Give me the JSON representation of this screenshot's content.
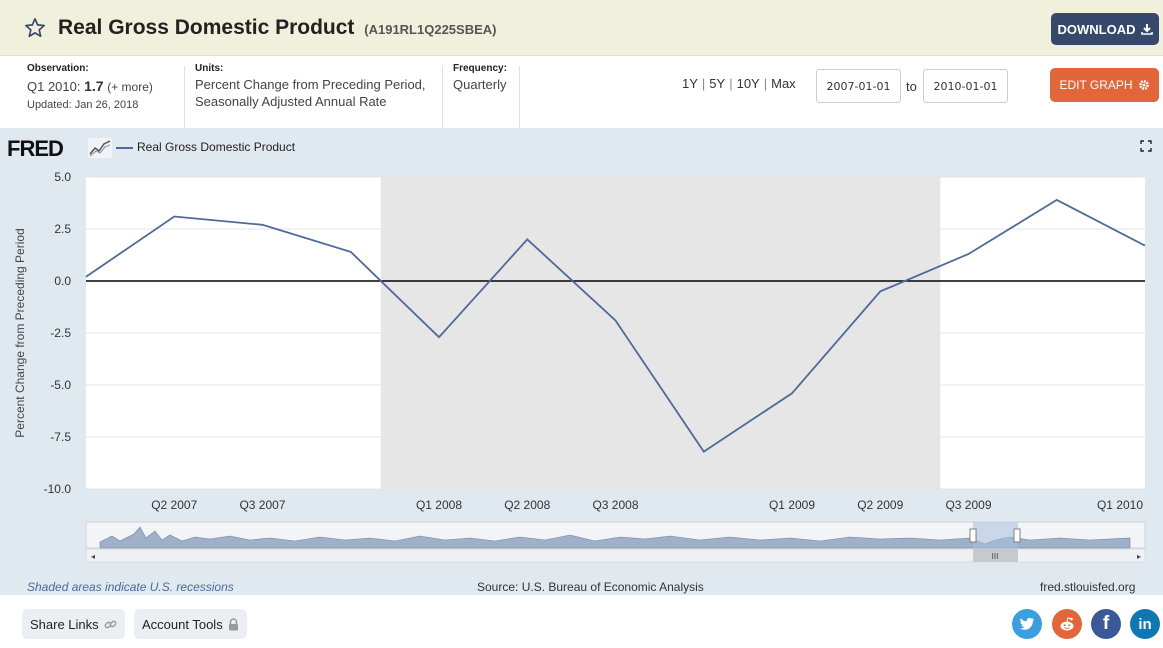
{
  "header": {
    "title": "Real Gross Domestic Product",
    "series_id": "(A191RL1Q225SBEA)",
    "download_label": "DOWNLOAD"
  },
  "meta": {
    "observation_label": "Observation:",
    "observation_period": "Q1 2010:",
    "observation_value": "1.7",
    "observation_more": "(+ more)",
    "updated": "Updated: Jan 26, 2018",
    "units_label": "Units:",
    "units_line1": "Percent Change from Preceding Period,",
    "units_line2": "Seasonally Adjusted Annual Rate",
    "frequency_label": "Frequency:",
    "frequency_value": "Quarterly"
  },
  "range_buttons": [
    "1Y",
    "5Y",
    "10Y",
    "Max"
  ],
  "date_range": {
    "start": "2007-01-01",
    "to_label": "to",
    "end": "2010-01-01"
  },
  "edit_label": "EDIT GRAPH",
  "graph": {
    "logo": "FRED",
    "legend_label": "Real Gross Domestic Product",
    "recession_note": "Shaded areas indicate U.S. recessions",
    "source": "Source: U.S. Bureau of Economic Analysis",
    "site": "fred.stlouisfed.org"
  },
  "footer": {
    "share_links": "Share Links",
    "account_tools": "Account Tools"
  },
  "colors": {
    "line": "#4d6a99",
    "recession_shade": "#e6e6e6",
    "header_bg": "#f0f0dc",
    "download_bg": "#36486b",
    "edit_bg": "#e2663a",
    "graph_bg": "#e1e9f0"
  },
  "chart_data": {
    "type": "line",
    "title": "",
    "xlabel": "",
    "ylabel": "Percent Change from Preceding Period",
    "ylim": [
      -10.0,
      5.0
    ],
    "yticks": [
      "5.0",
      "2.5",
      "0.0",
      "-2.5",
      "-5.0",
      "-7.5",
      "-10.0"
    ],
    "x": [
      "Q1 2007",
      "Q2 2007",
      "Q3 2007",
      "Q4 2007",
      "Q1 2008",
      "Q2 2008",
      "Q3 2008",
      "Q4 2008",
      "Q1 2009",
      "Q2 2009",
      "Q3 2009",
      "Q4 2009",
      "Q1 2010"
    ],
    "x_tick_labels": [
      "Q2 2007",
      "Q3 2007",
      "Q1 2008",
      "Q2 2008",
      "Q3 2008",
      "Q1 2009",
      "Q2 2009",
      "Q3 2009",
      "Q1 2010"
    ],
    "series": [
      {
        "name": "Real Gross Domestic Product",
        "values": [
          0.2,
          3.1,
          2.7,
          1.4,
          -2.7,
          2.0,
          -1.9,
          -8.2,
          -5.4,
          -0.5,
          1.3,
          3.9,
          1.7
        ]
      }
    ],
    "recession": {
      "start": "Q4 2007",
      "end": "Q2 2009"
    },
    "grid": true
  }
}
